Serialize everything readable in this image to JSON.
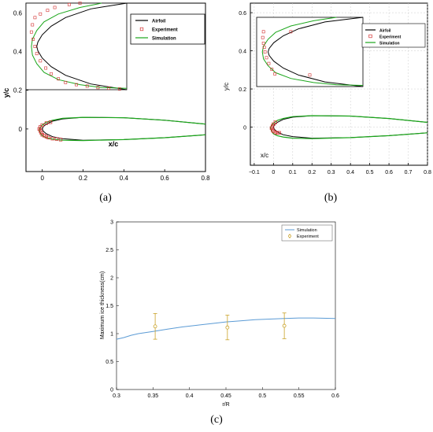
{
  "captions": [
    "(a)",
    "(b)",
    "(c)"
  ],
  "chart_data": [
    {
      "type": "line",
      "panel": "a",
      "xlabel": "x/c",
      "ylabel": "y/c",
      "xlim": [
        -0.08,
        0.8
      ],
      "ylim": [
        -0.22,
        0.65
      ],
      "xticks": [
        "0",
        "0.2",
        "0.4",
        "0.6",
        "0.8"
      ],
      "yticks": [
        "0",
        "0.2",
        "0.4",
        "0.6"
      ],
      "legend": {
        "placement": "top-right",
        "entries": [
          "Airfoil",
          "Experiment",
          "Simulation"
        ]
      },
      "inset": true,
      "colors": {
        "airfoil": "#000000",
        "experiment": "#d32f2f",
        "simulation": "#1aa61a"
      },
      "series": [
        {
          "name": "Airfoil",
          "x": [
            0.8,
            0.6,
            0.4,
            0.2,
            0.1,
            0.05,
            0.02,
            0.005,
            0,
            0.005,
            0.02,
            0.05,
            0.1,
            0.2,
            0.4,
            0.6,
            0.8
          ],
          "y": [
            0.025,
            0.045,
            0.058,
            0.06,
            0.052,
            0.04,
            0.025,
            0.012,
            0,
            -0.012,
            -0.025,
            -0.04,
            -0.05,
            -0.058,
            -0.055,
            -0.045,
            -0.03
          ]
        },
        {
          "name": "Experiment",
          "x": [
            0.04,
            0.02,
            0.0,
            -0.01,
            -0.015,
            -0.01,
            -0.005,
            0.0,
            0.01,
            0.02,
            0.03,
            0.05,
            0.07,
            0.09
          ],
          "y": [
            0.035,
            0.03,
            0.02,
            0.01,
            0.0,
            -0.01,
            -0.02,
            -0.03,
            -0.035,
            -0.04,
            -0.045,
            -0.05,
            -0.052,
            -0.055
          ]
        },
        {
          "name": "Simulation",
          "x": [
            0.8,
            0.6,
            0.4,
            0.2,
            0.1,
            0.05,
            0.02,
            0.0,
            -0.01,
            -0.015,
            -0.01,
            0.0,
            0.02,
            0.05,
            0.1,
            0.2,
            0.4,
            0.6,
            0.8
          ],
          "y": [
            0.025,
            0.045,
            0.058,
            0.06,
            0.055,
            0.045,
            0.035,
            0.02,
            0.008,
            -0.005,
            -0.02,
            -0.035,
            -0.045,
            -0.052,
            -0.058,
            -0.06,
            -0.055,
            -0.045,
            -0.03
          ]
        }
      ]
    },
    {
      "type": "line",
      "panel": "b",
      "xlabel": "x/c",
      "ylabel": "y/c",
      "xlim": [
        -0.12,
        0.8
      ],
      "ylim": [
        -0.2,
        0.65
      ],
      "xticks": [
        "−0.1",
        "0",
        "0.1",
        "0.2",
        "0.3",
        "0.4",
        "0.5",
        "0.6",
        "0.7",
        "0.8"
      ],
      "yticks": [
        "0",
        "0.2",
        "0.4",
        "0.6"
      ],
      "legend": {
        "placement": "top-right",
        "entries": [
          "Airfoil",
          "Experiment",
          "Simulation"
        ]
      },
      "inset": true,
      "colors": {
        "airfoil": "#000000",
        "experiment": "#d32f2f",
        "simulation": "#1aa61a"
      },
      "series": [
        {
          "name": "Airfoil",
          "x": [
            0.8,
            0.6,
            0.4,
            0.2,
            0.1,
            0.05,
            0.02,
            0.005,
            0,
            0.005,
            0.02,
            0.05,
            0.1,
            0.2,
            0.4,
            0.6,
            0.8
          ],
          "y": [
            0.025,
            0.045,
            0.058,
            0.06,
            0.052,
            0.04,
            0.025,
            0.012,
            0,
            -0.012,
            -0.025,
            -0.04,
            -0.05,
            -0.058,
            -0.055,
            -0.045,
            -0.03
          ]
        },
        {
          "name": "Experiment",
          "x": [
            0.01,
            0.0,
            -0.005,
            -0.01,
            -0.005,
            0.0,
            0.01,
            0.02,
            0.03
          ],
          "y": [
            0.025,
            0.015,
            0.005,
            -0.005,
            -0.015,
            -0.022,
            -0.028,
            -0.03,
            -0.03
          ]
        },
        {
          "name": "Simulation",
          "x": [
            0.8,
            0.6,
            0.4,
            0.2,
            0.1,
            0.05,
            0.02,
            0.0,
            -0.01,
            -0.015,
            -0.01,
            0.0,
            0.02,
            0.05,
            0.1,
            0.2,
            0.4,
            0.6,
            0.8
          ],
          "y": [
            0.025,
            0.045,
            0.058,
            0.06,
            0.055,
            0.045,
            0.035,
            0.02,
            0.008,
            -0.005,
            -0.02,
            -0.035,
            -0.045,
            -0.052,
            -0.058,
            -0.06,
            -0.055,
            -0.045,
            -0.03
          ]
        }
      ]
    },
    {
      "type": "line",
      "panel": "c",
      "xlabel": "r/R",
      "ylabel": "Maximum ice thickness(cm)",
      "xlim": [
        0.3,
        0.6
      ],
      "ylim": [
        0,
        3
      ],
      "xticks": [
        "0.3",
        "0.35",
        "0.4",
        "0.45",
        "0.5",
        "0.55",
        "0.6"
      ],
      "yticks": [
        "0",
        "0.5",
        "1",
        "1.5",
        "2",
        "2.5",
        "3"
      ],
      "legend": {
        "placement": "top-right",
        "entries": [
          "Simulation",
          "Experiment"
        ]
      },
      "colors": {
        "simulation": "#5b9bd5",
        "experiment": "#c9a227"
      },
      "series": [
        {
          "name": "Simulation",
          "x": [
            0.3,
            0.31,
            0.32,
            0.33,
            0.34,
            0.35,
            0.37,
            0.39,
            0.41,
            0.43,
            0.45,
            0.47,
            0.49,
            0.51,
            0.53,
            0.55,
            0.57,
            0.6
          ],
          "y": [
            0.9,
            0.93,
            0.97,
            1.0,
            1.02,
            1.04,
            1.08,
            1.12,
            1.15,
            1.18,
            1.21,
            1.23,
            1.25,
            1.26,
            1.27,
            1.28,
            1.28,
            1.27
          ]
        },
        {
          "name": "Experiment",
          "x": [
            0.353,
            0.452,
            0.53
          ],
          "y": [
            1.13,
            1.11,
            1.14
          ],
          "err": [
            0.23,
            0.22,
            0.23
          ]
        }
      ]
    }
  ]
}
